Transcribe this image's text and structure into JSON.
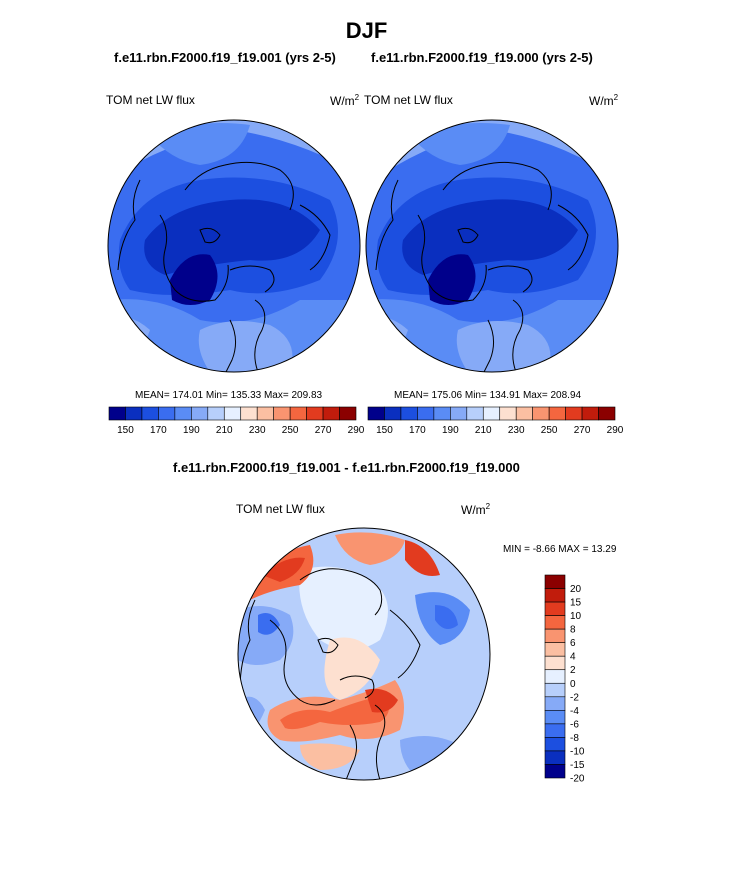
{
  "page": {
    "title": "DJF",
    "subtitle_left": "f.e11.rbn.F2000.f19_f19.001 (yrs 2-5)",
    "subtitle_right": "f.e11.rbn.F2000.f19_f19.000 (yrs 2-5)",
    "diff_title": "f.e11.rbn.F2000.f19_f19.001 - f.e11.rbn.F2000.f19_f19.000"
  },
  "colors": {
    "abs_scale": [
      "#00008b",
      "#0a2fbf",
      "#1c4fe0",
      "#3a6df0",
      "#5a8cf5",
      "#86aaf7",
      "#b7cffb",
      "#e6f0ff",
      "#fde0d0",
      "#fbbfa2",
      "#f99470",
      "#f4663f",
      "#e23b1f",
      "#c11c0c",
      "#8b0000"
    ],
    "diff_scale": [
      "#00008b",
      "#0a2fbf",
      "#1c4fe0",
      "#3a6df0",
      "#5a8cf5",
      "#86aaf7",
      "#b7cffb",
      "#e6f0ff",
      "#fde0d0",
      "#fbbfa2",
      "#f99470",
      "#f4663f",
      "#e23b1f",
      "#c11c0c",
      "#8b0000"
    ],
    "coast": "#000000"
  },
  "chart_data": [
    {
      "type": "heatmap",
      "projection": "north-polar-stereographic",
      "field": "TOM net LW flux",
      "units": "W/m",
      "units_sup": "2",
      "case": "f.e11.rbn.F2000.f19_f19.001 (yrs 2-5)",
      "stats": {
        "mean": 174.01,
        "min": 135.33,
        "max": 209.83
      },
      "stats_text": "MEAN= 174.01  Min= 135.33  Max= 209.83",
      "colorbar_ticks": [
        "150",
        "170",
        "190",
        "210",
        "230",
        "250",
        "270",
        "290"
      ],
      "legend_placement": "bottom"
    },
    {
      "type": "heatmap",
      "projection": "north-polar-stereographic",
      "field": "TOM net LW flux",
      "units": "W/m",
      "units_sup": "2",
      "case": "f.e11.rbn.F2000.f19_f19.000 (yrs 2-5)",
      "stats": {
        "mean": 175.06,
        "min": 134.91,
        "max": 208.94
      },
      "stats_text": "MEAN= 175.06  Min= 134.91  Max= 208.94",
      "colorbar_ticks": [
        "150",
        "170",
        "190",
        "210",
        "230",
        "250",
        "270",
        "290"
      ],
      "legend_placement": "bottom"
    },
    {
      "type": "heatmap",
      "projection": "north-polar-stereographic",
      "field": "TOM net LW flux",
      "units": "W/m",
      "units_sup": "2",
      "case": "f.e11.rbn.F2000.f19_f19.001 - f.e11.rbn.F2000.f19_f19.000",
      "stats": {
        "min": -8.66,
        "max": 13.29
      },
      "stats_text": "MIN =  -8.66 MAX =  13.29",
      "colorbar_ticks": [
        "20",
        "15",
        "10",
        "8",
        "6",
        "4",
        "2",
        "0",
        "-2",
        "-4",
        "-6",
        "-8",
        "-10",
        "-15",
        "-20"
      ],
      "legend_placement": "right"
    }
  ]
}
